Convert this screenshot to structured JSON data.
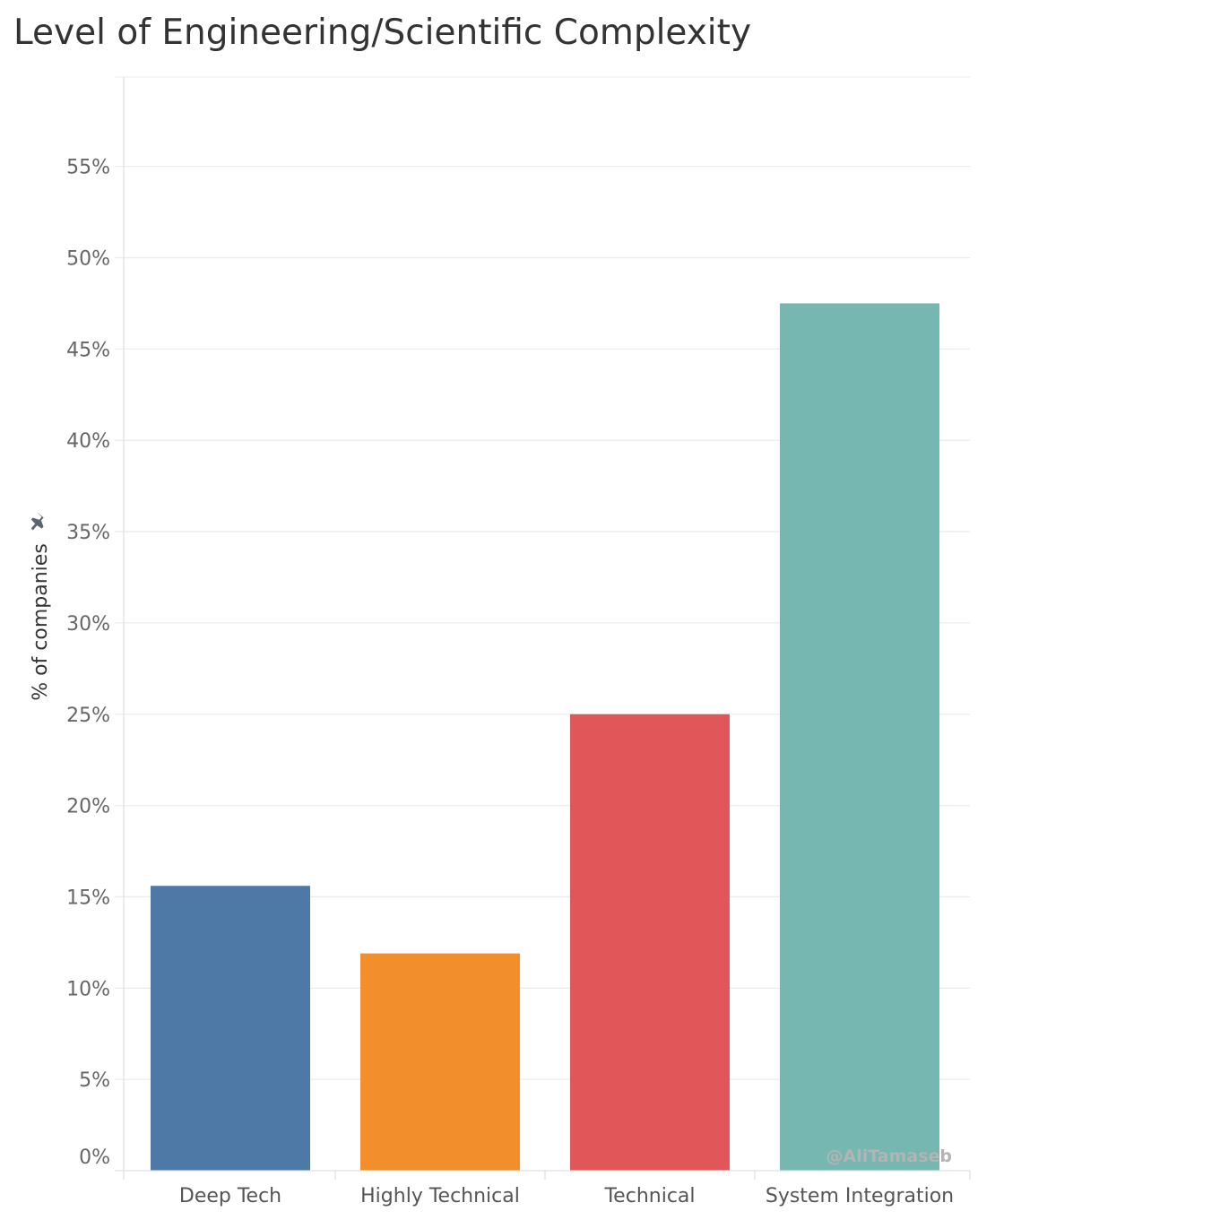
{
  "title": "Level of Engineering/Scientific Complexity",
  "watermark": "@AliTamaseb",
  "pin_icon": "pin-icon",
  "colors": {
    "grid": "#ececec",
    "axis": "#e0e0e0",
    "pin": "#5c6470"
  },
  "chart_data": {
    "type": "bar",
    "title": "Level of Engineering/Scientific Complexity",
    "xlabel": "",
    "ylabel": "% of companies",
    "ylim": [
      0,
      60
    ],
    "yticks": [
      0,
      5,
      10,
      15,
      20,
      25,
      30,
      35,
      40,
      45,
      50,
      55
    ],
    "ytick_labels": [
      "0%",
      "5%",
      "10%",
      "15%",
      "20%",
      "25%",
      "30%",
      "35%",
      "40%",
      "45%",
      "50%",
      "55%"
    ],
    "categories": [
      "Deep Tech",
      "Highly Technical",
      "Technical",
      "System Integration"
    ],
    "values": [
      15.6,
      11.9,
      25.0,
      47.5
    ],
    "colors": [
      "#4e79a7",
      "#f28e2b",
      "#e15759",
      "#76b7b2"
    ],
    "grid": true,
    "legend": "none"
  }
}
